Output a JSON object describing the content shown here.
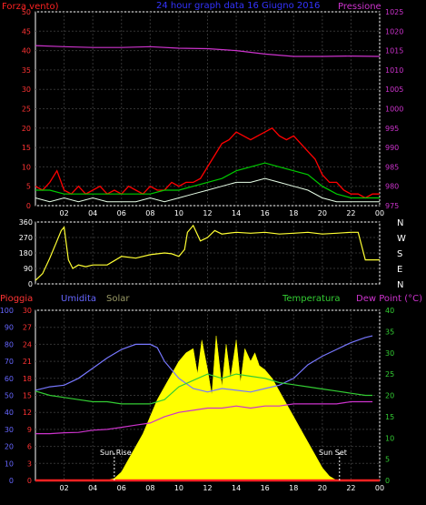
{
  "header": {
    "left_label": "Forza vento)",
    "center_label": "24 hour graph data   16 Giugno 2016",
    "right_label": "Pressione"
  },
  "panel_wind_dir": {
    "compass": [
      "N",
      "W",
      "S",
      "E",
      "N"
    ]
  },
  "panel_weather": {
    "labels": {
      "rain": "Pioggia",
      "humidity": "Umidita",
      "solar": "Solar",
      "temperature": "Temperatura",
      "dew_point": "Dew Point (°C)"
    },
    "annotations": {
      "sunrise": "Sun Rise",
      "sunset": "Sun Set"
    }
  },
  "colors": {
    "wind": "#ff0000",
    "wind_avg": "#00cc00",
    "gust_white": "#e8ffe8",
    "pressure": "#cc33cc",
    "direction": "#ffff33",
    "humidity": "#7777ff",
    "temperature": "#33cc33",
    "dew_point": "#cc33cc",
    "solar": "#ffff00",
    "rain": "#ff2222",
    "grid": "#333333",
    "axis": "#ffffff",
    "blue_axis": "#6666ff",
    "green_axis": "#33cc33",
    "red_axis": "#ff3333",
    "right_axis": "#cc33cc"
  },
  "chart_data": [
    {
      "id": "wind_pressure",
      "type": "line",
      "title": "24 hour graph data   16 Giugno 2016",
      "x_ticks": [
        "02",
        "04",
        "06",
        "08",
        "10",
        "12",
        "14",
        "16",
        "18",
        "20",
        "22",
        "00"
      ],
      "xlim": [
        0,
        24
      ],
      "y_left": {
        "label": "Forza vento)",
        "ylim": [
          0,
          50
        ],
        "ticks": [
          0,
          5,
          10,
          15,
          20,
          25,
          30,
          35,
          40,
          45,
          50
        ]
      },
      "y_right": {
        "label": "Pressione",
        "ylim": [
          975,
          1025
        ],
        "ticks": [
          975,
          980,
          985,
          990,
          995,
          1000,
          1005,
          1010,
          1015,
          1020,
          1025
        ]
      },
      "grid": true,
      "series": [
        {
          "key": "wind_max",
          "x": [
            0,
            0.5,
            1,
            1.5,
            2,
            2.5,
            3,
            3.5,
            4,
            4.5,
            5,
            5.5,
            6,
            6.5,
            7,
            7.5,
            8,
            8.5,
            9,
            9.5,
            10,
            10.5,
            11,
            11.5,
            12,
            12.5,
            13,
            13.5,
            14,
            14.5,
            15,
            15.5,
            16,
            16.5,
            17,
            17.5,
            18,
            18.5,
            19,
            19.5,
            20,
            20.5,
            21,
            21.5,
            22,
            22.5,
            23,
            23.5,
            24
          ],
          "y": [
            5,
            4,
            6,
            9,
            4,
            3,
            5,
            3,
            4,
            5,
            3,
            4,
            3,
            5,
            4,
            3,
            5,
            4,
            4,
            6,
            5,
            6,
            6,
            7,
            10,
            13,
            16,
            17,
            19,
            18,
            17,
            18,
            19,
            20,
            18,
            17,
            18,
            16,
            14,
            12,
            8,
            6,
            6,
            4,
            3,
            3,
            2,
            3,
            3
          ]
        },
        {
          "key": "wind_avg",
          "x": [
            0,
            1,
            2,
            3,
            4,
            5,
            6,
            7,
            8,
            9,
            10,
            11,
            12,
            13,
            14,
            15,
            16,
            17,
            18,
            19,
            20,
            21,
            22,
            23,
            24
          ],
          "y": [
            4,
            4,
            3,
            3,
            3,
            3,
            3,
            3,
            3,
            4,
            4,
            5,
            6,
            7,
            9,
            10,
            11,
            10,
            9,
            8,
            5,
            3,
            2,
            2,
            2
          ]
        },
        {
          "key": "wind_gust_low",
          "x": [
            0,
            1,
            2,
            3,
            4,
            5,
            6,
            7,
            8,
            9,
            10,
            11,
            12,
            13,
            14,
            15,
            16,
            17,
            18,
            19,
            20,
            21,
            22,
            23,
            24
          ],
          "y": [
            2,
            1,
            2,
            1,
            2,
            1,
            1,
            1,
            2,
            1,
            2,
            3,
            4,
            5,
            6,
            6,
            7,
            6,
            5,
            4,
            2,
            1,
            1,
            1,
            1
          ]
        },
        {
          "name": "Pressione",
          "key": "pressure",
          "x": [
            0,
            2,
            4,
            6,
            8,
            10,
            12,
            14,
            16,
            18,
            20,
            22,
            24
          ],
          "y": [
            1016.3,
            1016.0,
            1015.8,
            1015.8,
            1016.0,
            1015.6,
            1015.5,
            1015.0,
            1014.1,
            1013.5,
            1013.5,
            1013.6,
            1013.5
          ]
        }
      ]
    },
    {
      "id": "wind_direction",
      "type": "line",
      "x_ticks": [
        "02",
        "04",
        "06",
        "08",
        "10",
        "12",
        "14",
        "16",
        "18",
        "20",
        "22",
        "00"
      ],
      "xlim": [
        0,
        24
      ],
      "y_left": {
        "ylim": [
          0,
          360
        ],
        "ticks": [
          0,
          90,
          180,
          270,
          360
        ]
      },
      "y_right_labels": [
        "N",
        "W",
        "S",
        "E",
        "N"
      ],
      "grid": true,
      "series": [
        {
          "key": "direction",
          "x": [
            0,
            0.5,
            1,
            1.5,
            1.8,
            2,
            2.3,
            2.6,
            3,
            3.5,
            4,
            5,
            6,
            7,
            8,
            9,
            9.5,
            10,
            10.4,
            10.6,
            11,
            11.5,
            12,
            12.5,
            13,
            14,
            15,
            16,
            17,
            18,
            19,
            20,
            21,
            22,
            22.5,
            23,
            24
          ],
          "y": [
            20,
            60,
            150,
            250,
            310,
            330,
            140,
            90,
            110,
            100,
            110,
            110,
            160,
            150,
            170,
            180,
            175,
            160,
            200,
            300,
            340,
            250,
            270,
            310,
            290,
            300,
            295,
            300,
            290,
            295,
            300,
            290,
            295,
            300,
            300,
            140,
            140
          ]
        }
      ]
    },
    {
      "id": "weather",
      "type": "line",
      "x_ticks": [
        "02",
        "04",
        "06",
        "08",
        "10",
        "12",
        "14",
        "16",
        "18",
        "20",
        "22",
        "00"
      ],
      "xlim": [
        0,
        24
      ],
      "y_humidity": {
        "label": "Umidita",
        "ylim": [
          0,
          100
        ],
        "ticks": [
          0,
          10,
          20,
          30,
          40,
          50,
          60,
          70,
          80,
          90,
          100
        ]
      },
      "y_rain": {
        "label": "Pioggia",
        "ylim": [
          0,
          30
        ],
        "ticks": [
          0,
          3,
          6,
          9,
          12,
          15,
          18,
          21,
          24,
          27,
          30
        ]
      },
      "y_temperature": {
        "label": "Temperatura",
        "ylim": [
          0,
          40
        ],
        "ticks": [
          0,
          5,
          10,
          15,
          20,
          25,
          30,
          35,
          40
        ]
      },
      "y_solar_label": "Solar",
      "grid": true,
      "series": [
        {
          "name": "Umidita",
          "key": "humidity",
          "x": [
            0,
            1,
            2,
            3,
            4,
            5,
            6,
            7,
            8,
            8.5,
            9,
            10,
            11,
            12,
            13,
            14,
            15,
            16,
            17,
            18,
            19,
            20,
            21,
            22,
            23,
            23.5
          ],
          "y": [
            53,
            55,
            56,
            60,
            66,
            72,
            77,
            80,
            80,
            78,
            70,
            60,
            54,
            52,
            54,
            53,
            52,
            54,
            56,
            60,
            68,
            73,
            77,
            81,
            84,
            85
          ]
        },
        {
          "name": "Temperatura",
          "key": "temperature",
          "x": [
            0,
            1,
            2,
            3,
            4,
            5,
            6,
            7,
            8,
            9,
            10,
            11,
            12,
            13,
            14,
            15,
            16,
            17,
            18,
            19,
            20,
            21,
            22,
            23,
            23.5
          ],
          "y": [
            21,
            20,
            19.5,
            19,
            18.5,
            18.5,
            18,
            18,
            18,
            19,
            22,
            23.5,
            25,
            24,
            25,
            24.5,
            24,
            23,
            22.5,
            22,
            21.5,
            21,
            20.5,
            20,
            20
          ]
        },
        {
          "name": "Dew Point (°C)",
          "key": "dew_point",
          "x": [
            0,
            1,
            2,
            3,
            4,
            5,
            6,
            7,
            8,
            9,
            10,
            11,
            12,
            13,
            14,
            15,
            16,
            17,
            18,
            19,
            20,
            21,
            22,
            23,
            23.5
          ],
          "y": [
            11,
            11,
            11.2,
            11.3,
            11.8,
            12,
            12.5,
            13,
            13.5,
            15,
            16,
            16.5,
            17,
            17,
            17.5,
            17,
            17.5,
            17.5,
            18,
            18,
            18,
            18,
            18.5,
            18.5,
            18.5
          ]
        },
        {
          "name": "Solar",
          "key": "solar",
          "x": [
            0,
            5,
            5.5,
            6,
            6.5,
            7,
            7.5,
            8,
            8.5,
            9,
            9.5,
            10,
            10.5,
            11,
            11.3,
            11.6,
            12,
            12.3,
            12.6,
            13,
            13.3,
            13.6,
            14,
            14.3,
            14.6,
            15,
            15.3,
            15.6,
            16,
            16.5,
            17,
            17.5,
            18,
            18.5,
            19,
            19.5,
            20,
            20.5,
            21,
            24
          ],
          "y": [
            0,
            0,
            0.5,
            2,
            5,
            8,
            11,
            15,
            19,
            22,
            25,
            28,
            30,
            31,
            25,
            33,
            26,
            20,
            34,
            22,
            32,
            24,
            33,
            23,
            31,
            28,
            30,
            27,
            26,
            24,
            21,
            18,
            15,
            12,
            9,
            6,
            3,
            1,
            0,
            0
          ]
        },
        {
          "name": "Pioggia",
          "key": "rain",
          "x": [
            0,
            24
          ],
          "y": [
            0,
            0
          ]
        }
      ]
    }
  ]
}
